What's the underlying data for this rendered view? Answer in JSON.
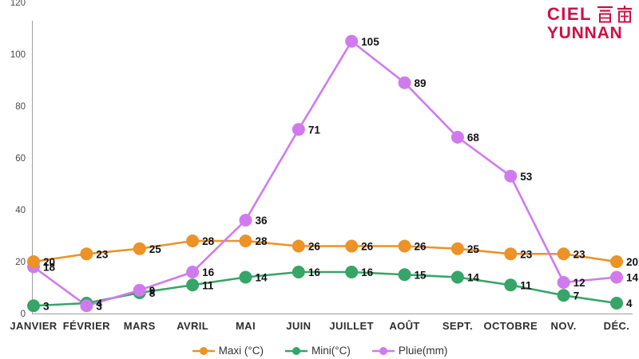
{
  "logo": {
    "line1": "CIEL",
    "chinese": "雲南",
    "line2": "YUNNAN",
    "color": "#CE0F45"
  },
  "chart_data": {
    "type": "line",
    "title": "",
    "xlabel": "",
    "ylabel": "",
    "categories": [
      "JANVIER",
      "FÉVRIER",
      "MARS",
      "AVRIL",
      "MAI",
      "JUIN",
      "JUILLET",
      "AOÛT",
      "SEPT.",
      "OCTOBRE",
      "NOV.",
      "DÉC."
    ],
    "series": [
      {
        "name": "Maxi (°C)",
        "color": "#EC9227",
        "values": [
          20,
          23,
          25,
          28,
          28,
          26,
          26,
          26,
          25,
          23,
          23,
          20
        ]
      },
      {
        "name": "Mini(°C)",
        "color": "#36A567",
        "values": [
          3,
          4,
          8,
          11,
          14,
          16,
          16,
          15,
          14,
          11,
          7,
          4
        ]
      },
      {
        "name": "Pluie(mm)",
        "color": "#CF7BEE",
        "values": [
          18,
          3,
          9,
          16,
          36,
          71,
          105,
          89,
          68,
          53,
          12,
          14
        ]
      }
    ],
    "ylim": [
      0,
      120
    ],
    "ytick_step": 20,
    "grid": false,
    "legend_position": "bottom",
    "point_labels": true,
    "axis_color": "#9E9E9E",
    "tick_label_color": "#4A4A4A",
    "month_label_color": "#2E2E2E",
    "point_label_color": "#111111"
  }
}
